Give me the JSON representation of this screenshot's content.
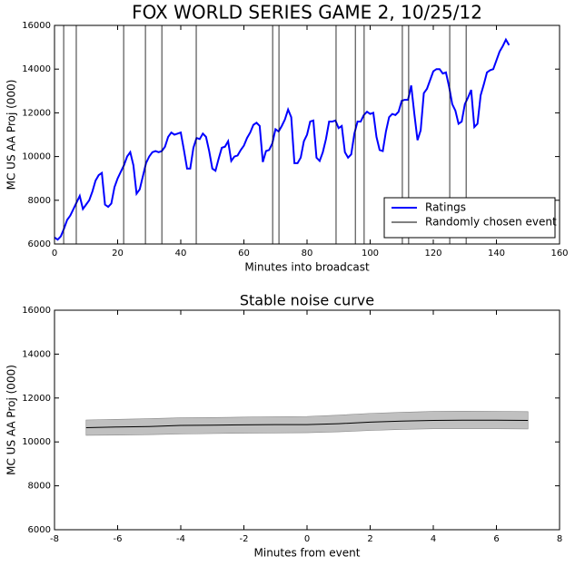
{
  "chart_data": [
    {
      "type": "line",
      "title": "FOX WORLD SERIES GAME 2, 10/25/12",
      "xlabel": "Minutes into broadcast",
      "ylabel": "MC US AA Proj (000)",
      "x": [
        0,
        1,
        2,
        3,
        4,
        5,
        6,
        7,
        8,
        9,
        10,
        11,
        12,
        13,
        14,
        15,
        16,
        17,
        18,
        19,
        20,
        21,
        22,
        23,
        24,
        25,
        26,
        27,
        28,
        29,
        30,
        31,
        32,
        33,
        34,
        35,
        36,
        37,
        38,
        39,
        40,
        41,
        42,
        43,
        44,
        45,
        46,
        47,
        48,
        49,
        50,
        51,
        52,
        53,
        54,
        55,
        56,
        57,
        58,
        59,
        60,
        61,
        62,
        63,
        64,
        65,
        66,
        67,
        68,
        69,
        70,
        71,
        72,
        73,
        74,
        75,
        76,
        77,
        78,
        79,
        80,
        81,
        82,
        83,
        84,
        85,
        86,
        87,
        88,
        89,
        90,
        91,
        92,
        93,
        94,
        95,
        96,
        97,
        98,
        99,
        100,
        101,
        102,
        103,
        104,
        105,
        106,
        107,
        108,
        109,
        110,
        111,
        112,
        113,
        114,
        115,
        116,
        117,
        118,
        119,
        120,
        121,
        122,
        123,
        124,
        125,
        126,
        127,
        128,
        129,
        130,
        131,
        132,
        133,
        134,
        135,
        136,
        137,
        138,
        139,
        140,
        141,
        142,
        143,
        144
      ],
      "series": [
        {
          "name": "Ratings",
          "color": "#0000ff",
          "values": [
            6300,
            6200,
            6350,
            6700,
            7100,
            7300,
            7600,
            7900,
            8200,
            7600,
            7800,
            8000,
            8400,
            8900,
            9150,
            9250,
            7800,
            7700,
            7850,
            8600,
            9000,
            9300,
            9600,
            10000,
            10200,
            9600,
            8300,
            8500,
            9100,
            9700,
            10000,
            10200,
            10250,
            10200,
            10250,
            10450,
            10900,
            11100,
            11000,
            11050,
            11100,
            10300,
            9450,
            9450,
            10400,
            10850,
            10800,
            11050,
            10900,
            10250,
            9450,
            9350,
            9900,
            10400,
            10450,
            10700,
            9800,
            10000,
            10050,
            10300,
            10500,
            10850,
            11100,
            11450,
            11550,
            11400,
            9750,
            10250,
            10300,
            10600,
            11250,
            11150,
            11400,
            11700,
            12150,
            11800,
            9700,
            9700,
            9950,
            10700,
            11000,
            11600,
            11650,
            9950,
            9800,
            10200,
            10800,
            11600,
            11600,
            11650,
            11300,
            11400,
            10200,
            9950,
            10100,
            11050,
            11600,
            11600,
            11900,
            12050,
            11950,
            12000,
            10900,
            10300,
            10250,
            11150,
            11800,
            11950,
            11900,
            12050,
            12550,
            12600,
            12600,
            13250,
            11950,
            10750,
            11200,
            12900,
            13100,
            13500,
            13900,
            14000,
            14000,
            13800,
            13850,
            13200,
            12400,
            12100,
            11500,
            11600,
            12400,
            12700,
            13050,
            11350,
            11500,
            12800,
            13300,
            13850,
            13950,
            14000,
            14400,
            14800,
            15050,
            15350,
            15100
          ]
        }
      ],
      "events": {
        "name": "Randomly chosen event",
        "color": "#000000",
        "x": [
          2.9,
          6.9,
          21.9,
          28.8,
          34.0,
          44.9,
          69.1,
          71.1,
          89.2,
          95.3,
          98.1,
          110.2,
          112.2,
          125.2,
          130.4
        ]
      },
      "xlim": [
        0,
        160
      ],
      "ylim": [
        6000,
        16000
      ],
      "xticks": [
        0,
        20,
        40,
        60,
        80,
        100,
        120,
        140,
        160
      ],
      "yticks": [
        6000,
        8000,
        10000,
        12000,
        14000,
        16000
      ],
      "legend": "lower right"
    },
    {
      "type": "line",
      "title": "Stable noise curve",
      "xlabel": "Minutes from event",
      "ylabel": "MC US AA Proj (000)",
      "x": [
        -7,
        -6,
        -5,
        -4,
        -3,
        -2,
        -1,
        0,
        1,
        2,
        3,
        4,
        5,
        6,
        7
      ],
      "series": [
        {
          "color": "#000000",
          "band_color": "#c0c0c0",
          "values": [
            10650,
            10680,
            10700,
            10750,
            10760,
            10780,
            10790,
            10790,
            10830,
            10900,
            10950,
            10980,
            10990,
            10990,
            10980
          ],
          "lower": [
            10300,
            10310,
            10330,
            10360,
            10380,
            10400,
            10410,
            10420,
            10460,
            10520,
            10570,
            10600,
            10600,
            10600,
            10590
          ],
          "upper": [
            11000,
            11030,
            11060,
            11100,
            11110,
            11130,
            11150,
            11160,
            11220,
            11300,
            11350,
            11390,
            11400,
            11390,
            11380
          ]
        }
      ],
      "xlim": [
        -8,
        8
      ],
      "ylim": [
        6000,
        16000
      ],
      "xticks": [
        -8,
        -6,
        -4,
        -2,
        0,
        2,
        4,
        6,
        8
      ],
      "yticks": [
        6000,
        8000,
        10000,
        12000,
        14000,
        16000
      ]
    }
  ]
}
